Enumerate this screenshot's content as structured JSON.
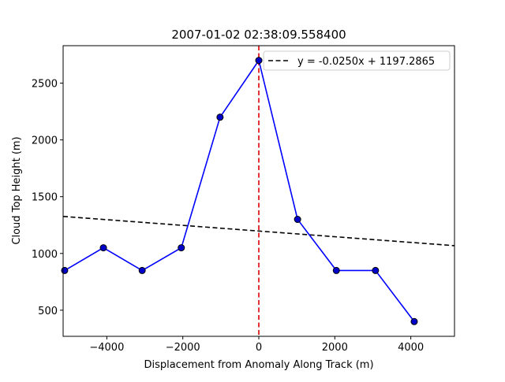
{
  "chart_data": {
    "type": "line",
    "title": "2007-01-02 02:38:09.558400",
    "xlabel": "Displacement from Anomaly Along Track (m)",
    "ylabel": "Cloud Top Height (m)",
    "xlim": [
      -5150,
      5150
    ],
    "ylim": [
      270,
      2830
    ],
    "xticks": [
      -4000,
      -2000,
      0,
      2000,
      4000
    ],
    "xtick_labels": [
      "−4000",
      "−2000",
      "0",
      "2000",
      "4000"
    ],
    "yticks": [
      500,
      1000,
      1500,
      2000,
      2500
    ],
    "ytick_labels": [
      "500",
      "1000",
      "1500",
      "2000",
      "2500"
    ],
    "grid": false,
    "legend_position": "top-right",
    "series": [
      {
        "x": [
          -5110,
          -4090,
          -3070,
          -2040,
          -1020,
          0,
          1020,
          2040,
          3070,
          4090
        ],
        "y": [
          850,
          1050,
          850,
          1050,
          2200,
          2700,
          1300,
          850,
          850,
          400
        ],
        "color": "#0000ff",
        "marker": "circle",
        "marker_color": "#0000cc"
      },
      {
        "name": "y = -0.0250x + 1197.2865",
        "style": "dashed",
        "color": "#000000",
        "slope": -0.025,
        "intercept": 1197.2865
      }
    ],
    "vline": {
      "x": 0,
      "color": "#dd0000",
      "style": "dashed"
    }
  }
}
